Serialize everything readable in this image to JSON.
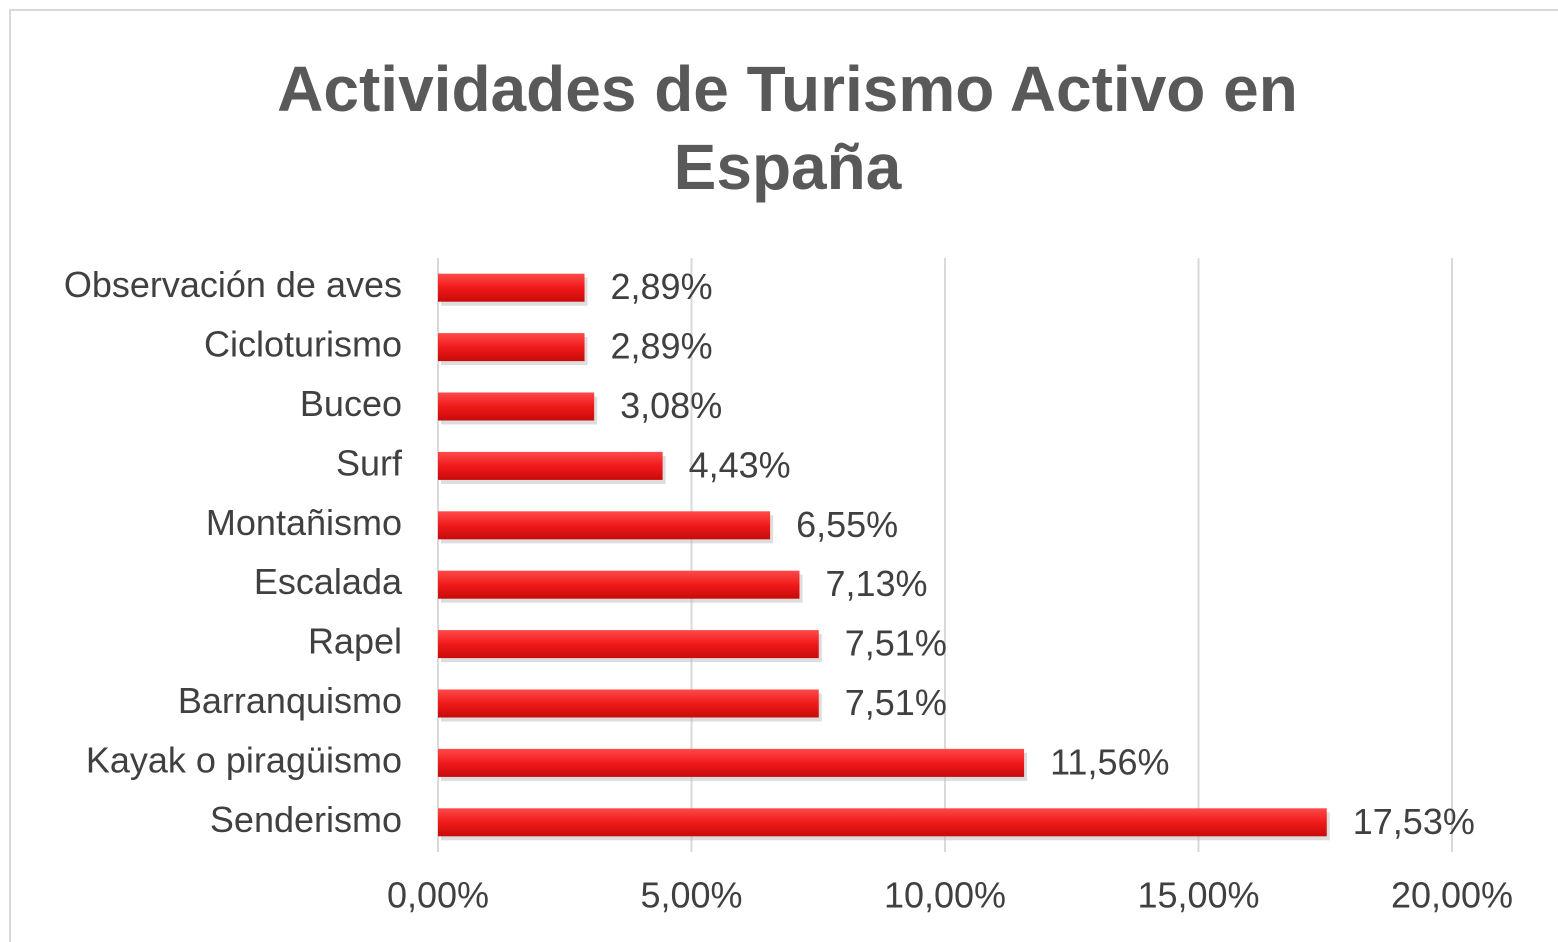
{
  "chart_data": {
    "type": "bar",
    "orientation": "horizontal",
    "title": "Actividades de Turismo Activo en España",
    "categories": [
      "Observación de aves",
      "Cicloturismo",
      "Buceo",
      "Surf",
      "Montañismo",
      "Escalada",
      "Rapel",
      "Barranquismo",
      "Kayak o piragüismo",
      "Senderismo"
    ],
    "values": [
      2.89,
      2.89,
      3.08,
      4.43,
      6.55,
      7.13,
      7.51,
      7.51,
      11.56,
      17.53
    ],
    "value_labels": [
      "2,89%",
      "2,89%",
      "3,08%",
      "4,43%",
      "6,55%",
      "7,13%",
      "7,51%",
      "7,51%",
      "11,56%",
      "17,53%"
    ],
    "color": "#e8141b",
    "xlim": [
      0,
      20
    ],
    "xticks": [
      {
        "value": 0,
        "label": "0,00%"
      },
      {
        "value": 5,
        "label": "5,00%"
      },
      {
        "value": 10,
        "label": "10,00%"
      },
      {
        "value": 15,
        "label": "15,00%"
      },
      {
        "value": 20,
        "label": "20,00%"
      }
    ],
    "grid": true
  }
}
